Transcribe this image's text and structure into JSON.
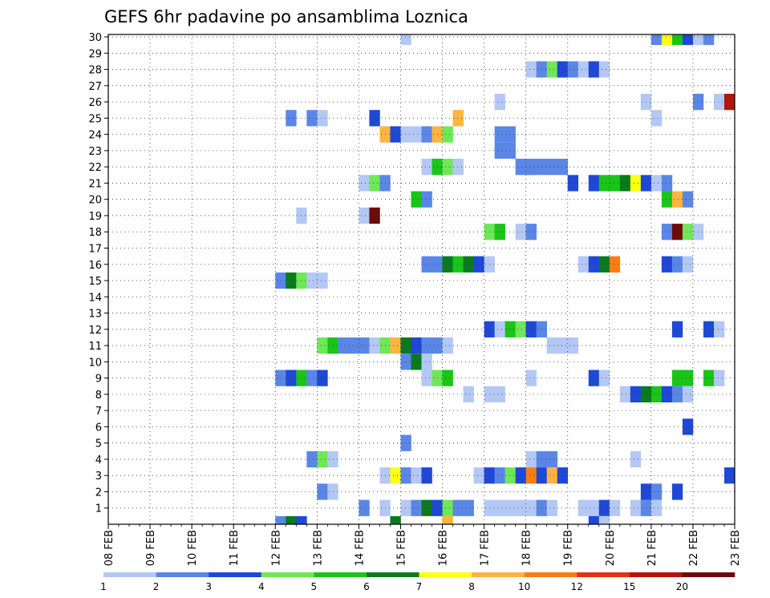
{
  "chart_data": {
    "type": "heatmap",
    "title": "GEFS 6hr padavine po ansamblima Loznica",
    "xlabel": "",
    "ylabel": "",
    "x_ticks": [
      "08 FEB",
      "09 FEB",
      "10 FEB",
      "11 FEB",
      "12 FEB",
      "13 FEB",
      "14 FEB",
      "15 FEB",
      "16 FEB",
      "17 FEB",
      "18 FEB",
      "19 FEB",
      "20 FEB",
      "21 FEB",
      "22 FEB",
      "23 FEB"
    ],
    "x_range_days": [
      0,
      15
    ],
    "y_range_members": [
      0,
      30
    ],
    "y_ticks": [
      1,
      2,
      3,
      4,
      5,
      6,
      7,
      8,
      9,
      10,
      11,
      12,
      13,
      14,
      15,
      16,
      17,
      18,
      19,
      20,
      21,
      22,
      23,
      24,
      25,
      26,
      27,
      28,
      29,
      30
    ],
    "grid": true,
    "colorbar": {
      "tick_labels": [
        "1",
        "2",
        "3",
        "4",
        "5",
        "6",
        "7",
        "8",
        "10",
        "12",
        "15",
        "20"
      ],
      "colors": [
        "#b4c8f5",
        "#5a87e6",
        "#1f48d6",
        "#6ee856",
        "#18c518",
        "#0b7a1e",
        "#ffff14",
        "#ffb440",
        "#fa7d14",
        "#e13214",
        "#b4140c",
        "#6e0a0a"
      ]
    },
    "cells_format": "member, start step (6h steps from 08 FEB 00Z), [color class 1..12, ...]",
    "cells": [
      [
        30,
        28,
        [
          1
        ]
      ],
      [
        30,
        52,
        [
          2,
          7,
          5,
          3,
          1,
          2
        ]
      ],
      [
        28,
        40,
        [
          1,
          2,
          4,
          3,
          2,
          1,
          3,
          1
        ]
      ],
      [
        26,
        37,
        [
          1
        ]
      ],
      [
        26,
        51,
        [
          1
        ]
      ],
      [
        26,
        56,
        [
          2
        ]
      ],
      [
        26,
        58,
        [
          1,
          11
        ]
      ],
      [
        25,
        17,
        [
          2
        ]
      ],
      [
        25,
        19,
        [
          2,
          1
        ]
      ],
      [
        25,
        25,
        [
          3
        ]
      ],
      [
        25,
        33,
        [
          8
        ]
      ],
      [
        25,
        52,
        [
          1
        ]
      ],
      [
        24,
        26,
        [
          8,
          3,
          1,
          1,
          2,
          8,
          4
        ]
      ],
      [
        24,
        37,
        [
          2,
          2
        ]
      ],
      [
        23,
        37,
        [
          2,
          2
        ]
      ],
      [
        22,
        39,
        [
          2,
          2
        ]
      ],
      [
        22,
        30,
        [
          1,
          5,
          4,
          1
        ]
      ],
      [
        22,
        40,
        [
          2,
          2,
          2,
          2
        ]
      ],
      [
        21,
        24,
        [
          1,
          4,
          2
        ]
      ],
      [
        21,
        44,
        [
          3
        ]
      ],
      [
        21,
        46,
        [
          3,
          5,
          5,
          6,
          7,
          3,
          1,
          2
        ]
      ],
      [
        20,
        29,
        [
          5,
          2
        ]
      ],
      [
        20,
        53,
        [
          5,
          8,
          2
        ]
      ],
      [
        19,
        18,
        [
          1
        ]
      ],
      [
        19,
        24,
        [
          1,
          12
        ]
      ],
      [
        18,
        36,
        [
          4,
          5
        ]
      ],
      [
        18,
        39,
        [
          1,
          2
        ]
      ],
      [
        18,
        53,
        [
          2,
          12,
          4,
          1
        ]
      ],
      [
        16,
        30,
        [
          2,
          2,
          6,
          5,
          6,
          3,
          1
        ]
      ],
      [
        16,
        45,
        [
          1,
          3,
          6,
          9
        ]
      ],
      [
        16,
        53,
        [
          3,
          2,
          1
        ]
      ],
      [
        15,
        16,
        [
          2,
          6,
          4,
          1,
          1
        ]
      ],
      [
        12,
        36,
        [
          3,
          1,
          5,
          4,
          3,
          2
        ]
      ],
      [
        12,
        54,
        [
          3
        ]
      ],
      [
        12,
        57,
        [
          3,
          1
        ]
      ],
      [
        11,
        20,
        [
          4,
          5,
          2,
          2,
          2,
          1,
          4,
          8,
          6,
          3,
          2,
          2,
          1
        ]
      ],
      [
        11,
        42,
        [
          1,
          1,
          1
        ]
      ],
      [
        10,
        28,
        [
          2,
          6
        ]
      ],
      [
        10,
        30,
        [
          1
        ]
      ],
      [
        9,
        16,
        [
          2,
          3,
          5,
          2,
          3
        ]
      ],
      [
        9,
        30,
        [
          1,
          4,
          5
        ]
      ],
      [
        9,
        40,
        [
          1
        ]
      ],
      [
        9,
        46,
        [
          3,
          1
        ]
      ],
      [
        9,
        54,
        [
          5,
          5
        ]
      ],
      [
        9,
        57,
        [
          5,
          1
        ]
      ],
      [
        8,
        34,
        [
          1
        ]
      ],
      [
        8,
        36,
        [
          1,
          1
        ]
      ],
      [
        8,
        49,
        [
          1,
          3,
          6,
          5,
          3,
          2,
          1
        ]
      ],
      [
        6,
        55,
        [
          3
        ]
      ],
      [
        5,
        28,
        [
          2
        ]
      ],
      [
        4,
        19,
        [
          2,
          4,
          1
        ]
      ],
      [
        4,
        40,
        [
          1,
          2,
          2
        ]
      ],
      [
        4,
        50,
        [
          1
        ]
      ],
      [
        3,
        26,
        [
          1,
          7,
          2,
          1,
          3
        ]
      ],
      [
        3,
        35,
        [
          1,
          3,
          2,
          4,
          3,
          9,
          3,
          8,
          3
        ]
      ],
      [
        3,
        59,
        [
          3
        ]
      ],
      [
        2,
        20,
        [
          2,
          1
        ]
      ],
      [
        2,
        51,
        [
          3,
          2
        ]
      ],
      [
        2,
        54,
        [
          3
        ]
      ],
      [
        1,
        24,
        [
          2
        ]
      ],
      [
        1,
        26,
        [
          1
        ]
      ],
      [
        1,
        28,
        [
          1,
          2,
          6,
          3,
          4,
          2,
          2
        ]
      ],
      [
        1,
        36,
        [
          1,
          1,
          1,
          1,
          1,
          2,
          1
        ]
      ],
      [
        1,
        45,
        [
          1,
          1,
          3,
          1
        ]
      ],
      [
        1,
        50,
        [
          1,
          2,
          1
        ]
      ],
      [
        0,
        16,
        [
          2,
          6,
          3
        ]
      ],
      [
        0,
        27,
        [
          6
        ]
      ],
      [
        0,
        32,
        [
          8
        ]
      ],
      [
        0,
        46,
        [
          3,
          1
        ]
      ]
    ]
  }
}
